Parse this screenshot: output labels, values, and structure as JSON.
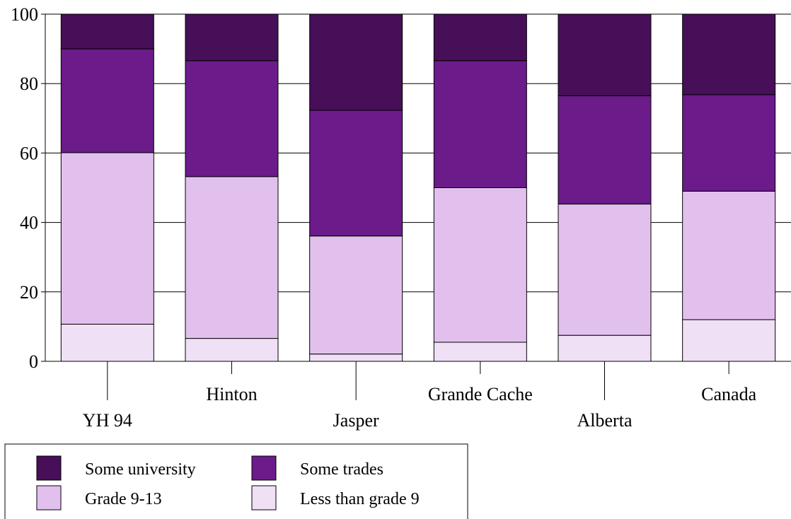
{
  "chart_data": {
    "type": "bar",
    "stacked": true,
    "title": "",
    "xlabel": "",
    "ylabel": "",
    "ylim": [
      0,
      100
    ],
    "yticks": [
      0,
      20,
      40,
      60,
      80,
      100
    ],
    "grid": "horizontal",
    "legend_position": "bottom-left",
    "categories": [
      "YH 94",
      "Hinton",
      "Jasper",
      "Grande Cache",
      "Alberta",
      "Canada"
    ],
    "series": [
      {
        "name": "Less than grade 9",
        "color": "#f0e0f6",
        "values": [
          10.7,
          6.6,
          2.1,
          5.5,
          7.5,
          12.0
        ]
      },
      {
        "name": "Grade 9-13",
        "color": "#e2c0ee",
        "values": [
          49.4,
          46.6,
          34.0,
          44.5,
          37.8,
          37.0
        ]
      },
      {
        "name": "Some trades",
        "color": "#6b1b8a",
        "values": [
          29.9,
          33.4,
          36.2,
          36.6,
          31.2,
          27.8
        ]
      },
      {
        "name": "Some university",
        "color": "#470f58",
        "values": [
          10.0,
          13.4,
          27.7,
          13.4,
          23.5,
          23.2
        ]
      }
    ]
  },
  "legend": {
    "items": [
      {
        "label": "Some university",
        "color": "#470f58"
      },
      {
        "label": "Some trades",
        "color": "#6b1b8a"
      },
      {
        "label": "Grade 9-13",
        "color": "#e2c0ee"
      },
      {
        "label": "Less than grade 9",
        "color": "#f0e0f6"
      }
    ]
  }
}
